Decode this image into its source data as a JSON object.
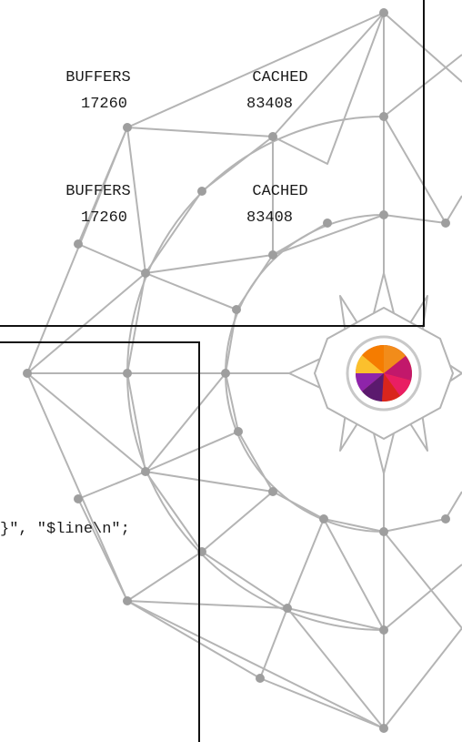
{
  "colors": {
    "line": "#b4b4b4",
    "node": "#9e9e9e",
    "text": "#1a1a1a",
    "window_border": "#111111"
  },
  "icons": {
    "logo": "color-wheel-compass-logo"
  },
  "wallpaper": {
    "name": "compass-mesh-wallpaper"
  },
  "top_terminal": {
    "blocks": [
      {
        "col1_label": "BUFFERS",
        "col2_label": "CACHED",
        "col1_value": "17260",
        "col2_value": "83408"
      },
      {
        "col1_label": "BUFFERS",
        "col2_label": "CACHED",
        "col1_value": "17260",
        "col2_value": "83408"
      }
    ]
  },
  "bottom_terminal": {
    "code_line": "}\", \"$line\\n\";"
  }
}
